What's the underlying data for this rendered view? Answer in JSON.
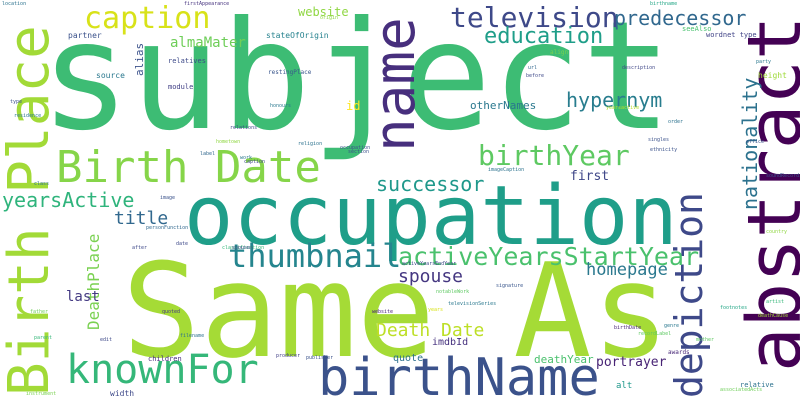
{
  "word_cloud": {
    "words": [
      {
        "text": "subject",
        "color": "#3dbc74",
        "vertical": false
      },
      {
        "text": "Same As",
        "color": "#a5db36",
        "vertical": false
      },
      {
        "text": "occupation",
        "color": "#1f9e89",
        "vertical": false
      },
      {
        "text": "abstract",
        "color": "#440154",
        "vertical": true
      },
      {
        "text": "birthName",
        "color": "#3b528b",
        "vertical": false
      },
      {
        "text": "Birth Place",
        "color": "#a2da37",
        "vertical": true
      },
      {
        "text": "Birth Date",
        "color": "#86d549",
        "vertical": false
      },
      {
        "text": "name",
        "color": "#472f7d",
        "vertical": true
      },
      {
        "text": "knownFor",
        "color": "#35b779",
        "vertical": false
      },
      {
        "text": "thumbnail",
        "color": "#25858e",
        "vertical": false
      },
      {
        "text": "depiction",
        "color": "#3e4989",
        "vertical": true
      },
      {
        "text": "television",
        "color": "#3e4989",
        "vertical": false
      },
      {
        "text": "caption",
        "color": "#d8e219",
        "vertical": false
      },
      {
        "text": "birthYear",
        "color": "#5ec962",
        "vertical": false
      },
      {
        "text": "activeYearsStartYear",
        "color": "#4ac16d",
        "vertical": false
      },
      {
        "text": "education",
        "color": "#1f9e89",
        "vertical": false
      },
      {
        "text": "predecessor",
        "color": "#31688e",
        "vertical": false
      },
      {
        "text": "nationality",
        "color": "#2c728e",
        "vertical": true
      },
      {
        "text": "yearsActive",
        "color": "#2fb47c",
        "vertical": false
      },
      {
        "text": "successor",
        "color": "#1f988b",
        "vertical": false
      },
      {
        "text": "hypernym",
        "color": "#287d8e",
        "vertical": false
      },
      {
        "text": "spouse",
        "color": "#453781",
        "vertical": false
      },
      {
        "text": "homepage",
        "color": "#2a788e",
        "vertical": false
      },
      {
        "text": "title",
        "color": "#31688e",
        "vertical": false
      },
      {
        "text": "Death Date",
        "color": "#bddf26",
        "vertical": false
      },
      {
        "text": "DeathPlace",
        "color": "#7ad151",
        "vertical": true
      },
      {
        "text": "almaMater",
        "color": "#6ece58",
        "vertical": false
      },
      {
        "text": "website",
        "color": "#90d743",
        "vertical": false
      },
      {
        "text": "portrayer",
        "color": "#482475",
        "vertical": false
      },
      {
        "text": "last",
        "color": "#443a83",
        "vertical": false
      },
      {
        "text": "first",
        "color": "#3f4788",
        "vertical": false
      },
      {
        "text": "otherNames",
        "color": "#2a788e",
        "vertical": false
      },
      {
        "text": "id",
        "color": "#fde725",
        "vertical": false
      },
      {
        "text": "alias",
        "color": "#3b528b",
        "vertical": true
      },
      {
        "text": "deathYear",
        "color": "#4ac16d",
        "vertical": false
      },
      {
        "text": "quote",
        "color": "#2d708e",
        "vertical": false
      },
      {
        "text": "imdbId",
        "color": "#46327e",
        "vertical": false
      },
      {
        "text": "stateOfOrigin",
        "color": "#26828e",
        "vertical": false
      },
      {
        "text": "partner",
        "color": "#3b528b",
        "vertical": false
      },
      {
        "text": "relatives",
        "color": "#3e4a89",
        "vertical": false
      },
      {
        "text": "source",
        "color": "#2a788e",
        "vertical": false
      },
      {
        "text": "module",
        "color": "#424086",
        "vertical": false
      },
      {
        "text": "restingPlace",
        "color": "#39568c",
        "vertical": false
      },
      {
        "text": "children",
        "color": "#472d7b",
        "vertical": false
      },
      {
        "text": "width",
        "color": "#3e4989",
        "vertical": false
      },
      {
        "text": "alt",
        "color": "#1f988b",
        "vertical": false
      },
      {
        "text": "relative",
        "color": "#2c728e",
        "vertical": false
      },
      {
        "text": "height",
        "color": "#9fda3a",
        "vertical": false
      },
      {
        "text": "wordnet type",
        "color": "#414487",
        "vertical": false
      },
      {
        "text": "seeAlso",
        "color": "#48c16e",
        "vertical": false
      },
      {
        "text": "align",
        "color": "#7ad151",
        "vertical": false
      },
      {
        "text": "description",
        "color": "#3f4788",
        "vertical": false
      },
      {
        "text": "yearsactive",
        "color": "#b5de2b",
        "vertical": false
      },
      {
        "text": "awards",
        "color": "#482878",
        "vertical": false
      },
      {
        "text": "personFunction",
        "color": "#31688e",
        "vertical": false
      },
      {
        "text": "classification",
        "color": "#35b779",
        "vertical": false
      },
      {
        "text": "activeYearsEndYear",
        "color": "#3e4989",
        "vertical": false
      },
      {
        "text": "televisionSeries",
        "color": "#2a788e",
        "vertical": false
      },
      {
        "text": "firstAppearance",
        "color": "#46337f",
        "vertical": false
      },
      {
        "text": "origin",
        "color": "#90d743",
        "vertical": false
      },
      {
        "text": "birthname",
        "color": "#21a585",
        "vertical": false
      },
      {
        "text": "imageCaption",
        "color": "#2c728e",
        "vertical": false
      },
      {
        "text": "signature",
        "color": "#39568c",
        "vertical": false
      },
      {
        "text": "singles",
        "color": "#3b528b",
        "vertical": false
      },
      {
        "text": "quoted",
        "color": "#453781",
        "vertical": false
      },
      {
        "text": "producer",
        "color": "#424086",
        "vertical": false
      },
      {
        "text": "filename",
        "color": "#2c728e",
        "vertical": false
      },
      {
        "text": "image",
        "color": "#3b528b",
        "vertical": false
      },
      {
        "text": "genre",
        "color": "#2a788e",
        "vertical": false
      },
      {
        "text": "artist",
        "color": "#35b779",
        "vertical": false
      },
      {
        "text": "after",
        "color": "#3e4989",
        "vertical": false
      },
      {
        "text": "before",
        "color": "#3e4989",
        "vertical": false
      },
      {
        "text": "date",
        "color": "#3e4989",
        "vertical": false
      },
      {
        "text": "father",
        "color": "#6ece58",
        "vertical": false
      },
      {
        "text": "edit",
        "color": "#3e4989",
        "vertical": false
      },
      {
        "text": "years",
        "color": "#d8e219",
        "vertical": false
      },
      {
        "text": "hometown",
        "color": "#90d743",
        "vertical": false
      },
      {
        "text": "spouses",
        "color": "#3e4989",
        "vertical": false
      },
      {
        "text": "soundRecording",
        "color": "#3b528b",
        "vertical": false
      },
      {
        "text": "occupation",
        "color": "#3b528b",
        "vertical": false
      },
      {
        "text": "residence",
        "color": "#2a788e",
        "vertical": false
      },
      {
        "text": "notableWork",
        "color": "#5ec962",
        "vertical": false
      },
      {
        "text": "birthDate",
        "color": "#482475",
        "vertical": false
      },
      {
        "text": "honours",
        "color": "#2a788e",
        "vertical": false
      },
      {
        "text": "label",
        "color": "#31688e",
        "vertical": false
      },
      {
        "text": "section",
        "color": "#3b528b",
        "vertical": false
      },
      {
        "text": "footnotes",
        "color": "#21a585",
        "vertical": false
      },
      {
        "text": "recordLabel",
        "color": "#5ec962",
        "vertical": false
      },
      {
        "text": "class",
        "color": "#2c728e",
        "vertical": false
      },
      {
        "text": "associatedActs",
        "color": "#6ece58",
        "vertical": false
      },
      {
        "text": "instrument",
        "color": "#7ad151",
        "vertical": false
      },
      {
        "text": "type",
        "color": "#3b528b",
        "vertical": false
      },
      {
        "text": "work",
        "color": "#2a788e",
        "vertical": false
      },
      {
        "text": "location",
        "color": "#2c728e",
        "vertical": false
      },
      {
        "text": "publisher",
        "color": "#3b528b",
        "vertical": false
      },
      {
        "text": "country",
        "color": "#90d743",
        "vertical": false
      },
      {
        "text": "deathCause",
        "color": "#a2da37",
        "vertical": false
      },
      {
        "text": "caption",
        "color": "#3e4989",
        "vertical": false
      },
      {
        "text": "website",
        "color": "#482475",
        "vertical": false
      },
      {
        "text": "religion",
        "color": "#2c728e",
        "vertical": false
      },
      {
        "text": "parent",
        "color": "#35b779",
        "vertical": false
      },
      {
        "text": "ethnicity",
        "color": "#3b528b",
        "vertical": false
      },
      {
        "text": "mother",
        "color": "#5ec962",
        "vertical": false
      },
      {
        "text": "relations",
        "color": "#3e4989",
        "vertical": false
      },
      {
        "text": "party",
        "color": "#2a788e",
        "vertical": false
      },
      {
        "text": "office",
        "color": "#3b528b",
        "vertical": false
      },
      {
        "text": "url",
        "color": "#31688e",
        "vertical": false
      },
      {
        "text": "order",
        "color": "#2c728e",
        "vertical": false
      }
    ]
  }
}
